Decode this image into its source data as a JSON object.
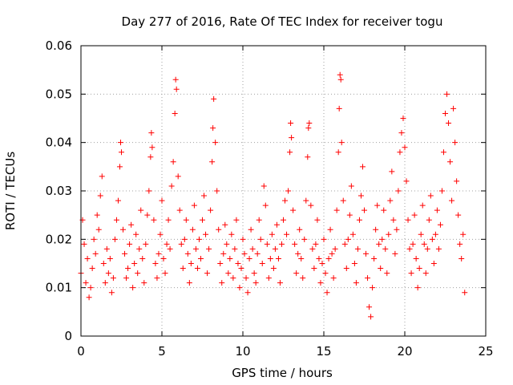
{
  "chart_data": {
    "type": "scatter",
    "title": "Day 277 of 2016, Rate Of TEC Index for receiver togu",
    "xlabel": "GPS time / hours",
    "ylabel": "ROTI / TECUs",
    "xlim": [
      0,
      25
    ],
    "ylim": [
      0,
      0.06
    ],
    "xticks": [
      0,
      5,
      10,
      15,
      20,
      25
    ],
    "yticks": [
      0,
      0.01,
      0.02,
      0.03,
      0.04,
      0.05,
      0.06
    ],
    "xtick_labels": [
      "0",
      "5",
      "10",
      "15",
      "20",
      "25"
    ],
    "ytick_labels": [
      "0",
      "0.01",
      "0.02",
      "0.03",
      "0.04",
      "0.05",
      "0.06"
    ],
    "grid": true,
    "marker": "plus",
    "color": "#ff0000",
    "series": [
      {
        "name": "ROTI",
        "points": [
          [
            0.0,
            0.013
          ],
          [
            0.1,
            0.024
          ],
          [
            0.2,
            0.019
          ],
          [
            0.3,
            0.011
          ],
          [
            0.4,
            0.016
          ],
          [
            0.5,
            0.008
          ],
          [
            0.6,
            0.01
          ],
          [
            0.7,
            0.014
          ],
          [
            0.8,
            0.02
          ],
          [
            0.9,
            0.017
          ],
          [
            1.0,
            0.025
          ],
          [
            1.1,
            0.022
          ],
          [
            1.2,
            0.029
          ],
          [
            1.3,
            0.033
          ],
          [
            1.4,
            0.015
          ],
          [
            1.5,
            0.011
          ],
          [
            1.6,
            0.018
          ],
          [
            1.7,
            0.013
          ],
          [
            1.8,
            0.016
          ],
          [
            1.9,
            0.009
          ],
          [
            2.0,
            0.012
          ],
          [
            2.1,
            0.02
          ],
          [
            2.2,
            0.024
          ],
          [
            2.3,
            0.028
          ],
          [
            2.4,
            0.035
          ],
          [
            2.45,
            0.04
          ],
          [
            2.5,
            0.038
          ],
          [
            2.6,
            0.022
          ],
          [
            2.7,
            0.017
          ],
          [
            2.8,
            0.012
          ],
          [
            2.9,
            0.014
          ],
          [
            3.0,
            0.019
          ],
          [
            3.1,
            0.023
          ],
          [
            3.2,
            0.01
          ],
          [
            3.3,
            0.015
          ],
          [
            3.4,
            0.021
          ],
          [
            3.5,
            0.013
          ],
          [
            3.6,
            0.018
          ],
          [
            3.7,
            0.026
          ],
          [
            3.8,
            0.016
          ],
          [
            3.9,
            0.011
          ],
          [
            4.0,
            0.019
          ],
          [
            4.1,
            0.025
          ],
          [
            4.2,
            0.03
          ],
          [
            4.3,
            0.037
          ],
          [
            4.35,
            0.042
          ],
          [
            4.4,
            0.039
          ],
          [
            4.5,
            0.024
          ],
          [
            4.6,
            0.015
          ],
          [
            4.7,
            0.012
          ],
          [
            4.8,
            0.017
          ],
          [
            4.9,
            0.021
          ],
          [
            5.0,
            0.028
          ],
          [
            5.1,
            0.016
          ],
          [
            5.2,
            0.013
          ],
          [
            5.3,
            0.019
          ],
          [
            5.4,
            0.024
          ],
          [
            5.5,
            0.018
          ],
          [
            5.6,
            0.031
          ],
          [
            5.7,
            0.036
          ],
          [
            5.8,
            0.046
          ],
          [
            5.85,
            0.053
          ],
          [
            5.9,
            0.051
          ],
          [
            6.0,
            0.033
          ],
          [
            6.1,
            0.026
          ],
          [
            6.2,
            0.019
          ],
          [
            6.3,
            0.014
          ],
          [
            6.4,
            0.02
          ],
          [
            6.5,
            0.024
          ],
          [
            6.6,
            0.017
          ],
          [
            6.7,
            0.011
          ],
          [
            6.8,
            0.015
          ],
          [
            6.9,
            0.022
          ],
          [
            7.0,
            0.027
          ],
          [
            7.1,
            0.018
          ],
          [
            7.2,
            0.014
          ],
          [
            7.3,
            0.02
          ],
          [
            7.4,
            0.016
          ],
          [
            7.5,
            0.024
          ],
          [
            7.6,
            0.029
          ],
          [
            7.7,
            0.021
          ],
          [
            7.8,
            0.013
          ],
          [
            7.9,
            0.018
          ],
          [
            8.0,
            0.026
          ],
          [
            8.1,
            0.036
          ],
          [
            8.15,
            0.043
          ],
          [
            8.2,
            0.049
          ],
          [
            8.3,
            0.04
          ],
          [
            8.4,
            0.03
          ],
          [
            8.5,
            0.022
          ],
          [
            8.6,
            0.015
          ],
          [
            8.7,
            0.011
          ],
          [
            8.8,
            0.017
          ],
          [
            8.9,
            0.023
          ],
          [
            9.0,
            0.019
          ],
          [
            9.1,
            0.013
          ],
          [
            9.2,
            0.016
          ],
          [
            9.3,
            0.021
          ],
          [
            9.4,
            0.012
          ],
          [
            9.5,
            0.018
          ],
          [
            9.6,
            0.024
          ],
          [
            9.7,
            0.015
          ],
          [
            9.8,
            0.01
          ],
          [
            9.9,
            0.014
          ],
          [
            10.0,
            0.02
          ],
          [
            10.1,
            0.017
          ],
          [
            10.2,
            0.012
          ],
          [
            10.3,
            0.009
          ],
          [
            10.4,
            0.016
          ],
          [
            10.5,
            0.022
          ],
          [
            10.6,
            0.018
          ],
          [
            10.7,
            0.013
          ],
          [
            10.8,
            0.011
          ],
          [
            10.9,
            0.017
          ],
          [
            11.0,
            0.024
          ],
          [
            11.1,
            0.02
          ],
          [
            11.2,
            0.015
          ],
          [
            11.3,
            0.031
          ],
          [
            11.4,
            0.027
          ],
          [
            11.5,
            0.019
          ],
          [
            11.6,
            0.012
          ],
          [
            11.7,
            0.016
          ],
          [
            11.8,
            0.021
          ],
          [
            11.9,
            0.014
          ],
          [
            12.0,
            0.018
          ],
          [
            12.1,
            0.023
          ],
          [
            12.2,
            0.016
          ],
          [
            12.3,
            0.011
          ],
          [
            12.4,
            0.019
          ],
          [
            12.5,
            0.024
          ],
          [
            12.6,
            0.028
          ],
          [
            12.7,
            0.021
          ],
          [
            12.8,
            0.03
          ],
          [
            12.9,
            0.038
          ],
          [
            12.95,
            0.044
          ],
          [
            13.0,
            0.041
          ],
          [
            13.1,
            0.026
          ],
          [
            13.2,
            0.019
          ],
          [
            13.3,
            0.013
          ],
          [
            13.4,
            0.017
          ],
          [
            13.5,
            0.022
          ],
          [
            13.6,
            0.016
          ],
          [
            13.7,
            0.012
          ],
          [
            13.8,
            0.02
          ],
          [
            13.9,
            0.028
          ],
          [
            14.0,
            0.037
          ],
          [
            14.05,
            0.043
          ],
          [
            14.1,
            0.044
          ],
          [
            14.2,
            0.027
          ],
          [
            14.3,
            0.018
          ],
          [
            14.4,
            0.014
          ],
          [
            14.5,
            0.019
          ],
          [
            14.6,
            0.024
          ],
          [
            14.7,
            0.016
          ],
          [
            14.8,
            0.011
          ],
          [
            14.9,
            0.015
          ],
          [
            15.0,
            0.02
          ],
          [
            15.1,
            0.013
          ],
          [
            15.2,
            0.009
          ],
          [
            15.3,
            0.016
          ],
          [
            15.4,
            0.022
          ],
          [
            15.5,
            0.017
          ],
          [
            15.6,
            0.012
          ],
          [
            15.7,
            0.018
          ],
          [
            15.8,
            0.026
          ],
          [
            15.9,
            0.038
          ],
          [
            15.95,
            0.047
          ],
          [
            16.0,
            0.054
          ],
          [
            16.05,
            0.053
          ],
          [
            16.1,
            0.04
          ],
          [
            16.2,
            0.028
          ],
          [
            16.3,
            0.019
          ],
          [
            16.4,
            0.014
          ],
          [
            16.5,
            0.02
          ],
          [
            16.6,
            0.025
          ],
          [
            16.7,
            0.031
          ],
          [
            16.8,
            0.021
          ],
          [
            16.9,
            0.015
          ],
          [
            17.0,
            0.011
          ],
          [
            17.1,
            0.018
          ],
          [
            17.2,
            0.024
          ],
          [
            17.3,
            0.029
          ],
          [
            17.4,
            0.035
          ],
          [
            17.5,
            0.026
          ],
          [
            17.6,
            0.017
          ],
          [
            17.7,
            0.012
          ],
          [
            17.8,
            0.006
          ],
          [
            17.9,
            0.004
          ],
          [
            18.0,
            0.01
          ],
          [
            18.1,
            0.016
          ],
          [
            18.2,
            0.022
          ],
          [
            18.3,
            0.027
          ],
          [
            18.4,
            0.019
          ],
          [
            18.5,
            0.014
          ],
          [
            18.6,
            0.02
          ],
          [
            18.7,
            0.026
          ],
          [
            18.8,
            0.018
          ],
          [
            18.9,
            0.013
          ],
          [
            19.0,
            0.021
          ],
          [
            19.1,
            0.028
          ],
          [
            19.2,
            0.034
          ],
          [
            19.3,
            0.024
          ],
          [
            19.4,
            0.017
          ],
          [
            19.5,
            0.022
          ],
          [
            19.6,
            0.03
          ],
          [
            19.7,
            0.038
          ],
          [
            19.8,
            0.042
          ],
          [
            19.9,
            0.045
          ],
          [
            20.0,
            0.039
          ],
          [
            20.1,
            0.032
          ],
          [
            20.2,
            0.024
          ],
          [
            20.3,
            0.018
          ],
          [
            20.4,
            0.013
          ],
          [
            20.5,
            0.019
          ],
          [
            20.6,
            0.025
          ],
          [
            20.7,
            0.016
          ],
          [
            20.8,
            0.01
          ],
          [
            20.9,
            0.014
          ],
          [
            21.0,
            0.021
          ],
          [
            21.1,
            0.027
          ],
          [
            21.2,
            0.019
          ],
          [
            21.3,
            0.013
          ],
          [
            21.4,
            0.018
          ],
          [
            21.5,
            0.024
          ],
          [
            21.6,
            0.029
          ],
          [
            21.7,
            0.02
          ],
          [
            21.8,
            0.015
          ],
          [
            21.9,
            0.021
          ],
          [
            22.0,
            0.026
          ],
          [
            22.1,
            0.018
          ],
          [
            22.2,
            0.023
          ],
          [
            22.3,
            0.03
          ],
          [
            22.4,
            0.038
          ],
          [
            22.5,
            0.046
          ],
          [
            22.6,
            0.05
          ],
          [
            22.7,
            0.044
          ],
          [
            22.8,
            0.036
          ],
          [
            22.9,
            0.028
          ],
          [
            23.0,
            0.047
          ],
          [
            23.1,
            0.04
          ],
          [
            23.2,
            0.032
          ],
          [
            23.3,
            0.025
          ],
          [
            23.4,
            0.019
          ],
          [
            23.5,
            0.016
          ],
          [
            23.6,
            0.021
          ],
          [
            23.7,
            0.009
          ]
        ]
      }
    ]
  }
}
